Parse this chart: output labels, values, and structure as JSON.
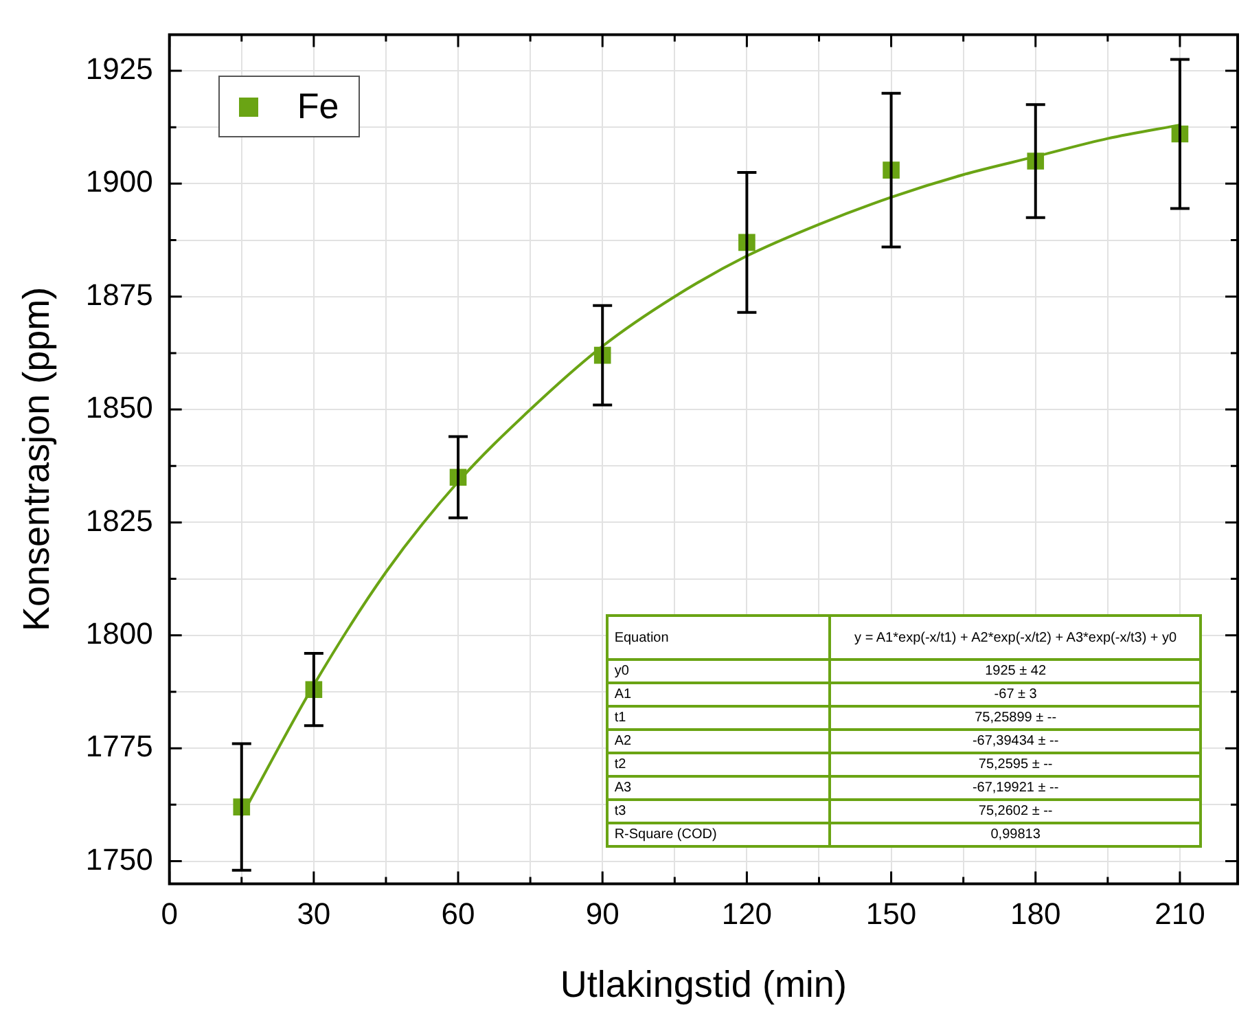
{
  "chart_data": {
    "type": "scatter",
    "xlabel": "Utlakingstid (min)",
    "ylabel": "Konsentrasjon (ppm)",
    "xlim": [
      0,
      222
    ],
    "ylim": [
      1745,
      1933
    ],
    "xticks": [
      0,
      {
        "value": 15,
        "label": null
      },
      30,
      {
        "value": 45,
        "label": null
      },
      60,
      {
        "value": 75,
        "label": null
      },
      90,
      {
        "value": 105,
        "label": null
      },
      120,
      {
        "value": 135,
        "label": null
      },
      150,
      {
        "value": 165,
        "label": null
      },
      180,
      {
        "value": 195,
        "label": null
      },
      210
    ],
    "yticks": [
      1750,
      {
        "value": 1762.5,
        "label": null
      },
      1775,
      {
        "value": 1787.5,
        "label": null
      },
      1800,
      {
        "value": 1812.5,
        "label": null
      },
      1825,
      {
        "value": 1837.5,
        "label": null
      },
      1850,
      {
        "value": 1862.5,
        "label": null
      },
      1875,
      {
        "value": 1887.5,
        "label": null
      },
      1900,
      {
        "value": 1912.5,
        "label": null
      },
      1925
    ],
    "grid": true,
    "legend": "top left",
    "marker": "square",
    "series": [
      {
        "name": "Fe",
        "color": "#6aa414",
        "x": [
          15,
          30,
          60,
          90,
          120,
          150,
          180,
          210
        ],
        "values": [
          1762,
          1788,
          1835,
          1862,
          1887,
          1903,
          1905,
          1911
        ],
        "errors": [
          14,
          8,
          9,
          11,
          15.5,
          17,
          12.5,
          16.5
        ]
      },
      {
        "color": "#6aa414",
        "type": "line",
        "marker": "none",
        "line_style": "solid",
        "x": [
          15,
          30,
          45,
          60,
          75,
          90,
          105,
          120,
          135,
          150,
          165,
          180,
          195,
          210
        ],
        "values": [
          1760,
          1789,
          1814,
          1834,
          1850,
          1864,
          1875,
          1884,
          1891,
          1897,
          1902,
          1906,
          1910,
          1913
        ]
      }
    ],
    "annotations": [
      "Equation",
      "y = A1*exp(-x/t1) + A2*exp(-x/t2) + A3*exp(-x/t3) + y0",
      "y0",
      "1925 ± 42",
      "A1",
      "-67 ± 3",
      "t1",
      "75,25899 ± --",
      "A2",
      "-67,39434 ± --",
      "t2",
      "75,2595 ± --",
      "A3",
      "-67,19921 ± --",
      "t3",
      "75,2602 ± --",
      "R-Square (COD)",
      "0,99813"
    ]
  }
}
